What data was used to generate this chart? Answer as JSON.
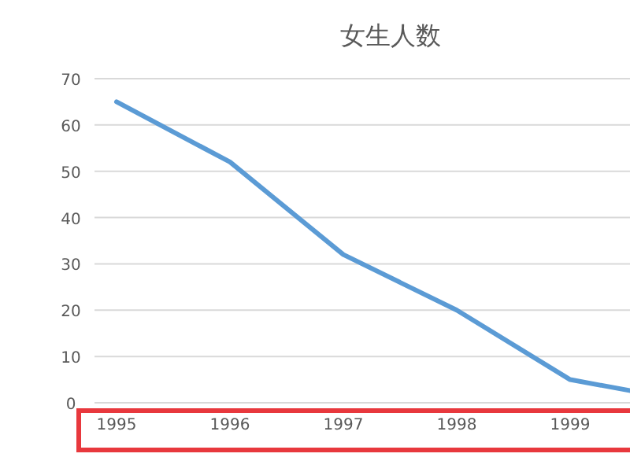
{
  "chart_data": {
    "type": "line",
    "title": "女生人数",
    "categories": [
      "1995",
      "1996",
      "1997",
      "1998",
      "1999",
      null
    ],
    "values": [
      65,
      52,
      32,
      20,
      5,
      0.5
    ],
    "color": "#5b9bd5",
    "ylim": [
      0,
      70
    ],
    "yticks": [
      0,
      10,
      20,
      30,
      40,
      50,
      60,
      70
    ],
    "grid": "y"
  }
}
